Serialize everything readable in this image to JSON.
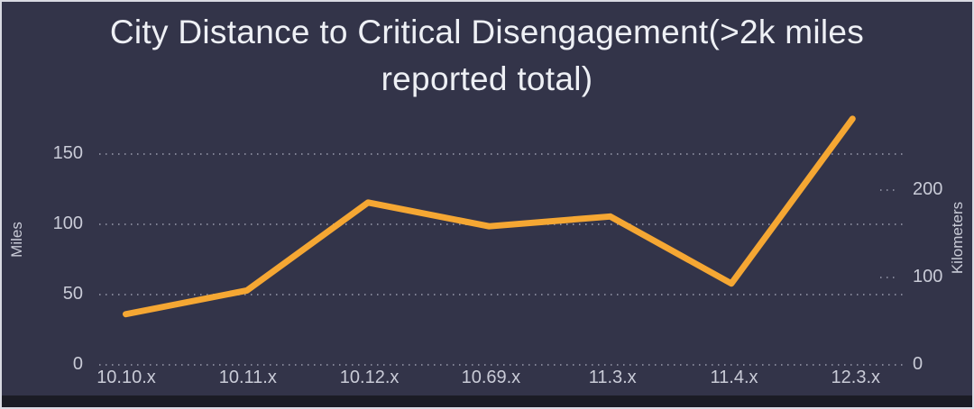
{
  "theme": {
    "background": "#333449",
    "frame_border": "#d9dae2",
    "bottom_band": "#1b1c25",
    "title_color": "#eef0f5",
    "tick_color": "#c9cbd7",
    "grid_color": "rgba(206,209,224,0.5)"
  },
  "chart_data": {
    "type": "line",
    "title": "City Distance to Critical Disengagement(>2k miles reported total)",
    "title_lines": [
      "City Distance to Critical Disengagement(>2k miles",
      "reported total)"
    ],
    "categories": [
      "10.10.x",
      "10.11.x",
      "10.12.x",
      "10.69.x",
      "11.3.x",
      "11.4.x",
      "12.3.x"
    ],
    "series": [
      {
        "name": "City distance to critical disengagement",
        "unit": "miles",
        "values": [
          34,
          51,
          114,
          97,
          104,
          56,
          174
        ]
      }
    ],
    "y_axis_left": {
      "label": "Miles",
      "ticks": [
        0,
        50,
        100,
        150
      ],
      "range": [
        0,
        190
      ]
    },
    "y_axis_right": {
      "label": "Kilometers",
      "ticks": [
        0,
        100,
        200
      ]
    },
    "line_color": "#f5a733",
    "line_width": 7,
    "markers": "none",
    "grid": "dotted horizontal",
    "legend": "none"
  }
}
